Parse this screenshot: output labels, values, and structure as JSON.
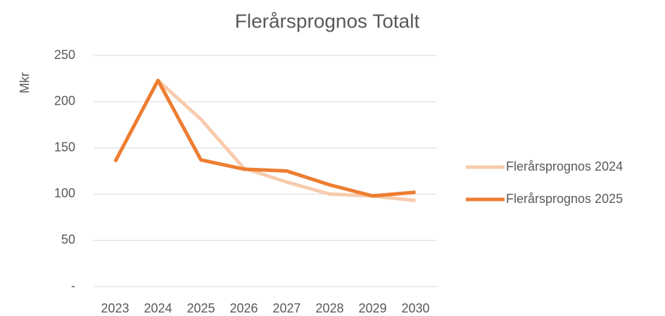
{
  "chart_data": {
    "type": "line",
    "title": "Flerårsprognos Totalt",
    "y_label": "Mkr",
    "categories": [
      "2023",
      "2024",
      "2025",
      "2026",
      "2027",
      "2028",
      "2029",
      "2030"
    ],
    "series": [
      {
        "name": "Flerårsprognos 2024",
        "color": "#f8cbad",
        "values": [
          null,
          223,
          181,
          128,
          113,
          100,
          98,
          93
        ]
      },
      {
        "name": "Flerårsprognos 2025",
        "color": "#ed7d31",
        "values": [
          135,
          223,
          137,
          127,
          125,
          110,
          98,
          102
        ]
      }
    ],
    "ylim": [
      0,
      250
    ],
    "yticks": [
      {
        "value": 0,
        "label": "-"
      },
      50,
      100,
      150,
      200,
      250
    ],
    "grid": true,
    "legend": "right"
  }
}
